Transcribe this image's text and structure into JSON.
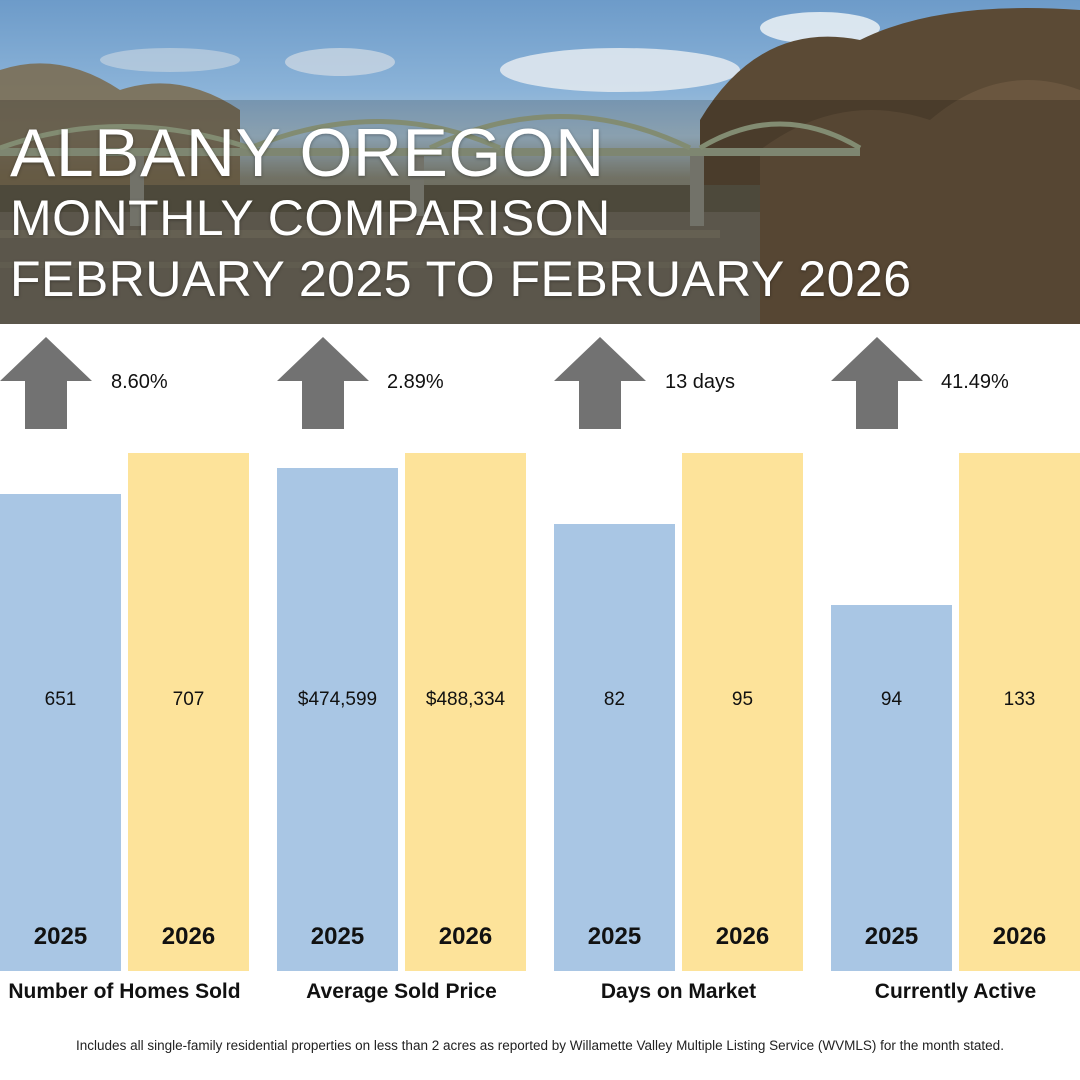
{
  "header": {
    "title": "ALBANY OREGON",
    "subtitle": "MONTHLY COMPARISON",
    "period": "FEBRUARY 2025 TO FEBRUARY 2026"
  },
  "colors": {
    "bar_2025": "#a9c6e4",
    "bar_2026": "#fde39a",
    "arrow": "#727272"
  },
  "chart_data": {
    "type": "bar",
    "title": "ALBANY OREGON MONTHLY COMPARISON FEBRUARY 2025 TO FEBRUARY 2026",
    "legend": [
      "2025",
      "2026"
    ],
    "groups": [
      {
        "label": "Number of Homes Sold",
        "change": "8.60%",
        "direction": "up",
        "values": [
          651,
          707
        ],
        "value_labels": [
          "651",
          "707"
        ],
        "years": [
          "2025",
          "2026"
        ]
      },
      {
        "label": "Average Sold Price",
        "change": "2.89%",
        "direction": "up",
        "values": [
          474599,
          488334
        ],
        "value_labels": [
          "$474,599",
          "$488,334"
        ],
        "years": [
          "2025",
          "2026"
        ]
      },
      {
        "label": "Days on Market",
        "change": "13 days",
        "direction": "up",
        "values": [
          82,
          95
        ],
        "value_labels": [
          "82",
          "95"
        ],
        "years": [
          "2025",
          "2026"
        ]
      },
      {
        "label": "Currently Active",
        "change": "41.49%",
        "direction": "up",
        "values": [
          94,
          133
        ],
        "value_labels": [
          "94",
          "133"
        ],
        "years": [
          "2025",
          "2026"
        ]
      }
    ]
  },
  "footnote": "Includes all single-family residential properties on less than 2 acres as reported by Willamette Valley Multiple Listing Service (WVMLS) for the month stated."
}
